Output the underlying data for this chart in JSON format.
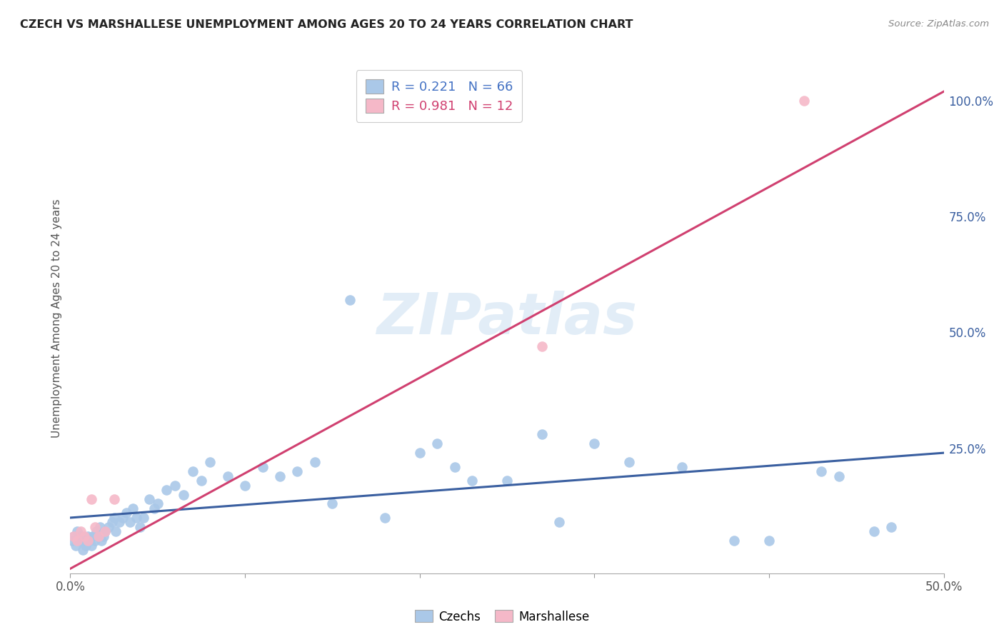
{
  "title": "CZECH VS MARSHALLESE UNEMPLOYMENT AMONG AGES 20 TO 24 YEARS CORRELATION CHART",
  "source": "Source: ZipAtlas.com",
  "ylabel": "Unemployment Among Ages 20 to 24 years",
  "xlim": [
    0.0,
    0.5
  ],
  "ylim": [
    -0.02,
    1.08
  ],
  "xticks": [
    0.0,
    0.1,
    0.2,
    0.3,
    0.4,
    0.5
  ],
  "xticklabels": [
    "0.0%",
    "",
    "",
    "",
    "",
    "50.0%"
  ],
  "yticks_right": [
    0.25,
    0.5,
    0.75,
    1.0
  ],
  "yticklabels_right": [
    "25.0%",
    "50.0%",
    "75.0%",
    "100.0%"
  ],
  "watermark_text": "ZIPatlas",
  "czech_color": "#aac8e8",
  "marshallese_color": "#f5b8c8",
  "czech_line_color": "#3a5fa0",
  "marshallese_line_color": "#d04070",
  "czech_scatter_x": [
    0.001,
    0.002,
    0.003,
    0.004,
    0.005,
    0.006,
    0.007,
    0.008,
    0.009,
    0.01,
    0.011,
    0.012,
    0.013,
    0.014,
    0.015,
    0.016,
    0.017,
    0.018,
    0.019,
    0.02,
    0.022,
    0.024,
    0.025,
    0.026,
    0.028,
    0.03,
    0.032,
    0.034,
    0.036,
    0.038,
    0.04,
    0.042,
    0.045,
    0.048,
    0.05,
    0.055,
    0.06,
    0.065,
    0.07,
    0.075,
    0.08,
    0.09,
    0.1,
    0.11,
    0.12,
    0.13,
    0.14,
    0.15,
    0.16,
    0.18,
    0.2,
    0.21,
    0.22,
    0.23,
    0.25,
    0.27,
    0.28,
    0.3,
    0.32,
    0.35,
    0.38,
    0.4,
    0.43,
    0.44,
    0.46,
    0.47
  ],
  "czech_scatter_y": [
    0.05,
    0.06,
    0.04,
    0.07,
    0.05,
    0.06,
    0.03,
    0.05,
    0.04,
    0.06,
    0.05,
    0.04,
    0.06,
    0.05,
    0.07,
    0.06,
    0.08,
    0.05,
    0.06,
    0.07,
    0.08,
    0.09,
    0.1,
    0.07,
    0.09,
    0.1,
    0.11,
    0.09,
    0.12,
    0.1,
    0.08,
    0.1,
    0.14,
    0.12,
    0.13,
    0.16,
    0.17,
    0.15,
    0.2,
    0.18,
    0.22,
    0.19,
    0.17,
    0.21,
    0.19,
    0.2,
    0.22,
    0.13,
    0.57,
    0.1,
    0.24,
    0.26,
    0.21,
    0.18,
    0.18,
    0.28,
    0.09,
    0.26,
    0.22,
    0.21,
    0.05,
    0.05,
    0.2,
    0.19,
    0.07,
    0.08
  ],
  "marshallese_scatter_x": [
    0.002,
    0.004,
    0.006,
    0.008,
    0.01,
    0.012,
    0.014,
    0.016,
    0.02,
    0.025,
    0.27,
    0.42
  ],
  "marshallese_scatter_y": [
    0.06,
    0.05,
    0.07,
    0.06,
    0.05,
    0.14,
    0.08,
    0.06,
    0.07,
    0.14,
    0.47,
    1.0
  ],
  "czech_trendline_x": [
    0.0,
    0.5
  ],
  "czech_trendline_y": [
    0.1,
    0.24
  ],
  "marsh_trendline_x": [
    0.0,
    0.5
  ],
  "marsh_trendline_y": [
    -0.01,
    1.02
  ],
  "background_color": "#ffffff",
  "grid_color": "#cccccc",
  "title_color": "#222222",
  "axis_label_color": "#555555",
  "right_tick_color": "#3a5fa0"
}
